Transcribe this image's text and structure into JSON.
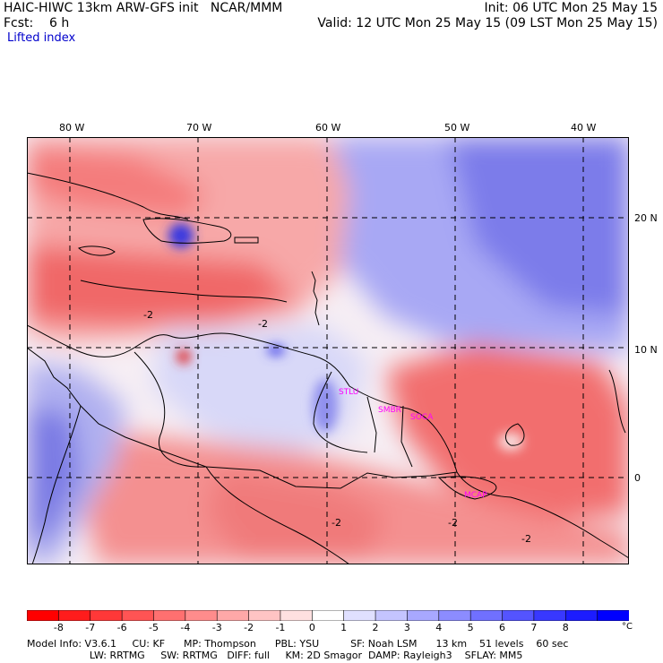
{
  "header": {
    "title_left": "HAIC-HIWC 13km ARW-GFS init   NCAR/MMM",
    "forecast": "Fcst:    6 h",
    "init": "Init: 06 UTC Mon 25 May 15",
    "valid": "Valid: 12 UTC Mon 25 May 15 (09 LST Mon 25 May 15)",
    "field": "Lifted index"
  },
  "map": {
    "lon_labels": [
      "80 W",
      "70 W",
      "60 W",
      "50 W",
      "40 W"
    ],
    "lat_labels": [
      "20 N",
      "10 N",
      "0"
    ],
    "region_labels": [
      "STLU",
      "SMBR",
      "SOCA",
      "MCAP"
    ],
    "contour_labels": [
      "-2",
      "-2",
      "-2",
      "-2",
      "-2"
    ],
    "colors": {
      "strong_unstable": "#f05050",
      "unstable": "#f7a0a0",
      "weak_unstable": "#fcd4d4",
      "neutral": "#f6f0f6",
      "weak_stable": "#c8c8f8",
      "stable": "#8e8ef0",
      "very_stable": "#4040e0",
      "label_magenta": "#ff00ff"
    }
  },
  "colorbar": {
    "labels": [
      "-8",
      "-7",
      "-6",
      "-5",
      "-4",
      "-3",
      "-2",
      "-1",
      "0",
      "1",
      "2",
      "3",
      "4",
      "5",
      "6",
      "7",
      "8"
    ],
    "unit": "°C",
    "colors": [
      "#ff0000",
      "#ff1c1c",
      "#ff3838",
      "#ff5454",
      "#ff7070",
      "#ff8c8c",
      "#ffa8a8",
      "#ffc4c4",
      "#ffe0e0",
      "#ffffff",
      "#e0e0ff",
      "#c4c4ff",
      "#a8a8ff",
      "#8c8cff",
      "#7070ff",
      "#5454ff",
      "#3838ff",
      "#1c1cff",
      "#0000ff"
    ]
  },
  "footer": {
    "line1": "Model Info: V3.6.1     CU: KF      MP: Thompson      PBL: YSU          SF: Noah LSM      13 km    51 levels    60 sec",
    "line2": "                    LW: RRTMG     SW: RRTMG   DIFF: full     KM: 2D Smagor  DAMP: Rayleigh3    SFLAY: MM5"
  }
}
